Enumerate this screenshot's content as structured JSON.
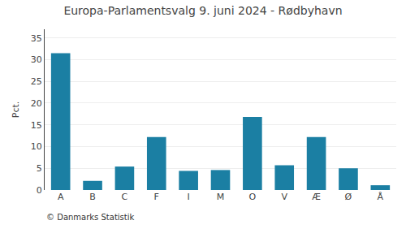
{
  "chart_data": {
    "type": "bar",
    "title": "Europa-Parlamentsvalg 9. juni 2024 - Rødbyhavn",
    "categories": [
      "A",
      "B",
      "C",
      "F",
      "I",
      "M",
      "O",
      "V",
      "Æ",
      "Ø",
      "Å"
    ],
    "values": [
      31.5,
      2.1,
      5.4,
      12.2,
      4.4,
      4.6,
      16.8,
      5.7,
      12.2,
      5.0,
      1.1
    ],
    "color": "#1b7fa3",
    "ylabel": "Pct.",
    "ylim": [
      0,
      37
    ],
    "yticks": [
      0,
      5,
      10,
      15,
      20,
      25,
      30,
      35
    ],
    "grid": true,
    "annotations": [
      "© Danmarks Statistik"
    ]
  }
}
